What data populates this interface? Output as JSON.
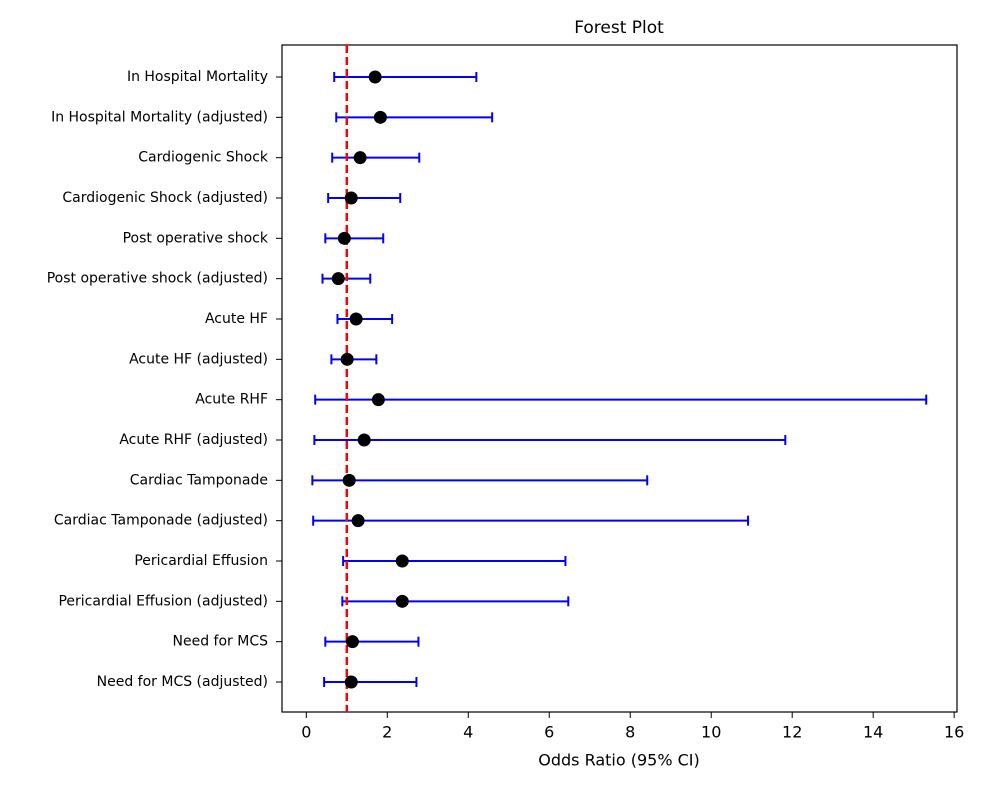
{
  "chart_data": {
    "type": "forest",
    "title": "Forest Plot",
    "x_label": "Odds Ratio (95% CI)",
    "categories": [
      "In Hospital Mortality",
      "In Hospital Mortality (adjusted)",
      "Cardiogenic Shock",
      "Cardiogenic Shock (adjusted)",
      "Post operative shock",
      "Post operative shock (adjusted)",
      "Acute HF",
      "Acute HF (adjusted)",
      "Acute RHF",
      "Acute RHF (adjusted)",
      "Cardiac Tamponade",
      "Cardiac Tamponade (adjusted)",
      "Pericardial Effusion",
      "Pericardial Effusion (adjusted)",
      "Need for MCS",
      "Need for MCS (adjusted)"
    ],
    "values": [
      1.7,
      1.83,
      1.33,
      1.11,
      0.94,
      0.79,
      1.23,
      1.01,
      1.78,
      1.43,
      1.06,
      1.28,
      2.37,
      2.37,
      1.14,
      1.11
    ],
    "lower": [
      0.69,
      0.74,
      0.64,
      0.54,
      0.47,
      0.4,
      0.77,
      0.62,
      0.22,
      0.2,
      0.15,
      0.17,
      0.91,
      0.89,
      0.47,
      0.44
    ],
    "upper": [
      4.2,
      4.59,
      2.79,
      2.32,
      1.9,
      1.58,
      2.12,
      1.73,
      15.31,
      11.83,
      8.42,
      10.91,
      6.4,
      6.47,
      2.77,
      2.72
    ],
    "point_color": "#000000",
    "ci_color": "#0000ff",
    "reference_line": 1,
    "reference_color": "#ff0000",
    "xlim": [
      -0.6,
      16.07
    ],
    "xticks": [
      0,
      2,
      4,
      6,
      8,
      10,
      12,
      14,
      16
    ]
  }
}
